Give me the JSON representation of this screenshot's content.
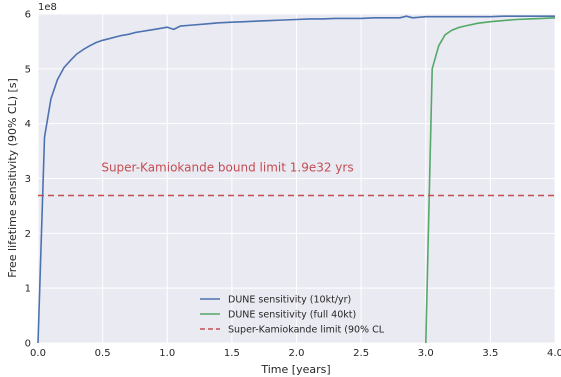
{
  "chart_data": {
    "type": "line",
    "xlabel": "Time [years]",
    "ylabel": "Free lifetime sensitivity (90% CL) [s]",
    "y_multiplier_label": "1e8",
    "xlim": [
      0.0,
      4.0
    ],
    "ylim": [
      0,
      6.0
    ],
    "x_ticks": [
      0.0,
      0.5,
      1.0,
      1.5,
      2.0,
      2.5,
      3.0,
      3.5,
      4.0
    ],
    "x_tick_labels": [
      "0.0",
      "0.5",
      "1.0",
      "1.5",
      "2.0",
      "2.5",
      "3.0",
      "3.5",
      "4.0"
    ],
    "y_ticks": [
      0,
      1,
      2,
      3,
      4,
      5,
      6
    ],
    "y_tick_labels": [
      "0",
      "1",
      "2",
      "3",
      "4",
      "5",
      "6"
    ],
    "grid": true,
    "legend_position": "bottom-center",
    "annotation": {
      "text": "Super-Kamiokande bound limit 1.9e32 yrs",
      "x": 0.49,
      "y": 3.2,
      "color": "#c44e52"
    },
    "series": [
      {
        "name": "DUNE sensitivity (10kt/yr)",
        "color": "#4c72b0",
        "style": "solid",
        "x": [
          0.0,
          0.05,
          0.1,
          0.15,
          0.2,
          0.25,
          0.3,
          0.35,
          0.4,
          0.45,
          0.5,
          0.55,
          0.6,
          0.65,
          0.7,
          0.75,
          0.8,
          0.85,
          0.9,
          0.95,
          1.0,
          1.05,
          1.1,
          1.2,
          1.3,
          1.4,
          1.5,
          1.6,
          1.7,
          1.8,
          1.9,
          2.0,
          2.1,
          2.2,
          2.3,
          2.4,
          2.5,
          2.6,
          2.7,
          2.8,
          2.85,
          2.9,
          3.0,
          3.1,
          3.2,
          3.3,
          3.4,
          3.5,
          3.6,
          3.7,
          3.8,
          3.9,
          4.0
        ],
        "y": [
          0.0,
          3.75,
          4.45,
          4.8,
          5.02,
          5.15,
          5.27,
          5.35,
          5.42,
          5.48,
          5.52,
          5.55,
          5.58,
          5.61,
          5.63,
          5.66,
          5.68,
          5.7,
          5.72,
          5.74,
          5.76,
          5.72,
          5.78,
          5.8,
          5.82,
          5.84,
          5.85,
          5.86,
          5.87,
          5.88,
          5.89,
          5.9,
          5.91,
          5.91,
          5.92,
          5.92,
          5.92,
          5.93,
          5.93,
          5.93,
          5.96,
          5.93,
          5.95,
          5.95,
          5.95,
          5.95,
          5.95,
          5.95,
          5.96,
          5.96,
          5.96,
          5.96,
          5.96
        ]
      },
      {
        "name": "DUNE sensitivity (full 40kt)",
        "color": "#55a868",
        "style": "solid",
        "x": [
          3.0,
          3.05,
          3.1,
          3.15,
          3.2,
          3.25,
          3.3,
          3.4,
          3.5,
          3.6,
          3.7,
          3.8,
          3.9,
          4.0
        ],
        "y": [
          0.0,
          5.0,
          5.42,
          5.62,
          5.7,
          5.75,
          5.78,
          5.83,
          5.86,
          5.88,
          5.9,
          5.91,
          5.92,
          5.93
        ]
      },
      {
        "name": "Super-Kamiokande limit (90% CL",
        "color": "#c44e52",
        "style": "dashed",
        "x": [
          0.0,
          4.0
        ],
        "y": [
          2.69,
          2.69
        ]
      }
    ]
  }
}
